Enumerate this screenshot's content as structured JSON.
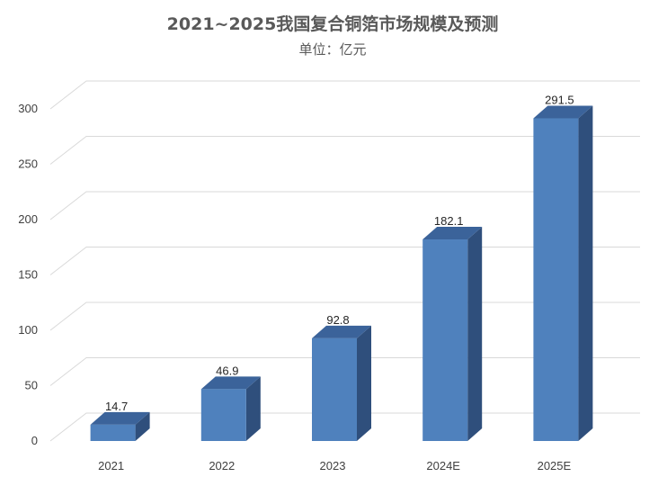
{
  "colors": {
    "bar_front": "#4f81bd",
    "bar_top": "#3b639a",
    "bar_side": "#2f4f7c",
    "grid": "#d9d9d9"
  },
  "chart_data": {
    "type": "bar",
    "title": "2021~2025我国复合铜箔市场规模及预测",
    "subtitle": "单位：亿元",
    "xlabel": "",
    "ylabel": "",
    "categories": [
      "2021",
      "2022",
      "2023",
      "2024E",
      "2025E"
    ],
    "values": [
      14.7,
      46.9,
      92.8,
      182.1,
      291.5
    ],
    "value_labels": [
      "14.7",
      "46.9",
      "92.8",
      "182.1",
      "291.5"
    ],
    "ylim": [
      0,
      300
    ],
    "yticks": [
      "0",
      "50",
      "100",
      "150",
      "200",
      "250",
      "300"
    ],
    "grid": true,
    "legend": "none",
    "style": "3d-column"
  }
}
